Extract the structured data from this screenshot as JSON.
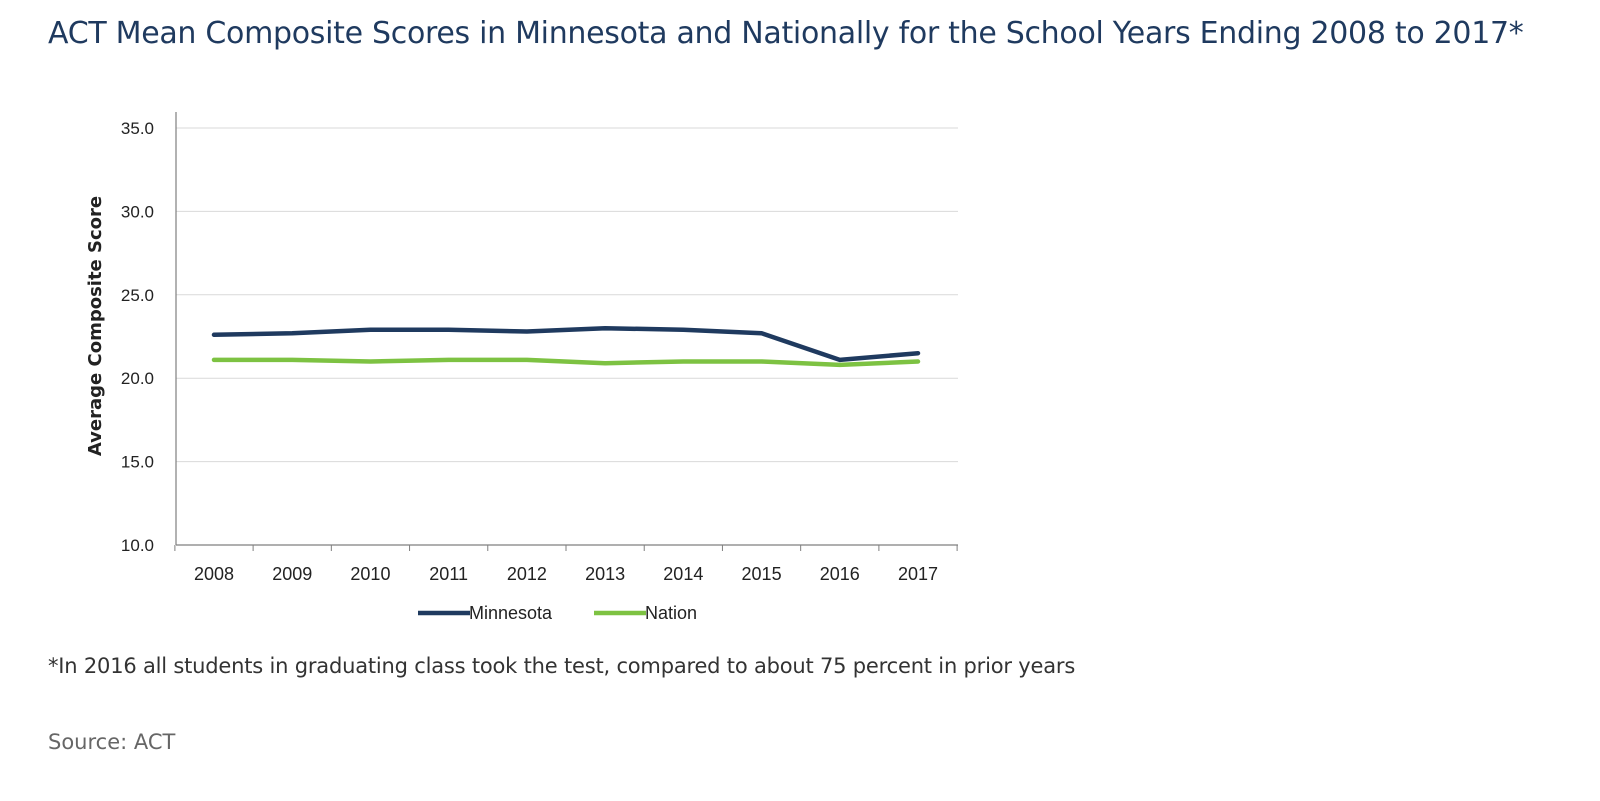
{
  "title": "ACT Mean Composite Scores in Minnesota and Nationally for the School Years Ending 2008 to 2017*",
  "footnote": "*In 2016 all students in graduating class took the test, compared to about 75 percent in prior years",
  "source": "Source: ACT",
  "chart_data": {
    "type": "line",
    "x": [
      "2008",
      "2009",
      "2010",
      "2011",
      "2012",
      "2013",
      "2014",
      "2015",
      "2016",
      "2017"
    ],
    "ylabel": "Average Composite Score",
    "xlabel": "",
    "ylim": [
      10,
      35
    ],
    "yticks": [
      "10.0",
      "15.0",
      "20.0",
      "25.0",
      "30.0",
      "35.0"
    ],
    "grid": "horizontal",
    "legend_position": "bottom",
    "series": [
      {
        "name": "Minnesota",
        "color": "#1f3a5f",
        "values": [
          22.6,
          22.7,
          22.9,
          22.9,
          22.8,
          23.0,
          22.9,
          22.7,
          21.1,
          21.5
        ]
      },
      {
        "name": "Nation",
        "color": "#7dc242",
        "values": [
          21.1,
          21.1,
          21.0,
          21.1,
          21.1,
          20.9,
          21.0,
          21.0,
          20.8,
          21.0
        ]
      }
    ]
  }
}
